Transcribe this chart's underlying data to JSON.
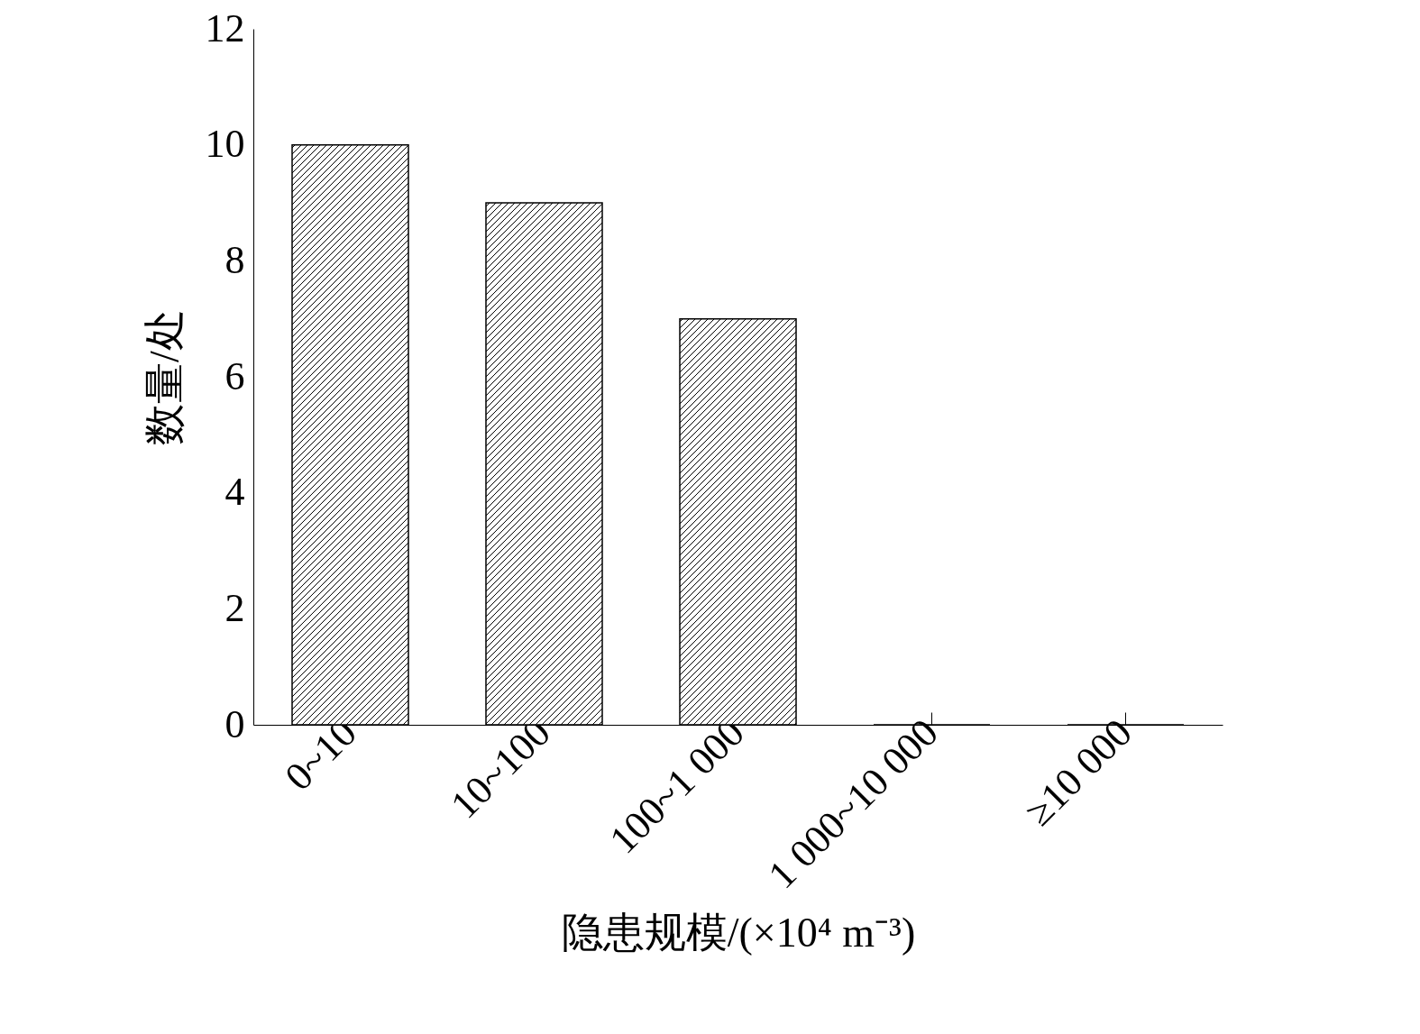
{
  "chart_data": {
    "type": "bar",
    "xlabel": "隐患规模/(×10⁴ m⁻³)",
    "ylabel": "数量/处",
    "categories": [
      "0~10",
      "10~100",
      "100~1 000",
      "1 000~10 000",
      "≥10 000"
    ],
    "values": [
      10,
      9,
      7,
      0,
      0
    ],
    "color": "#000000",
    "ylim": [
      0,
      12
    ],
    "yticks": [
      0,
      2,
      4,
      6,
      8,
      10,
      12
    ],
    "grid": false
  }
}
